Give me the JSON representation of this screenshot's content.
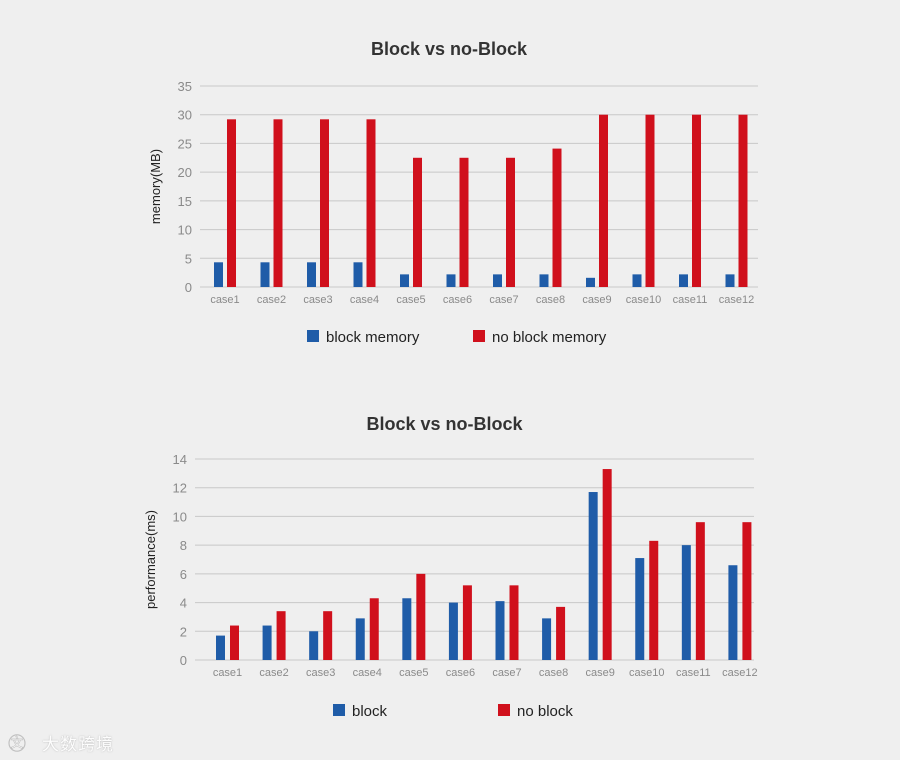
{
  "colors": {
    "background": "#efefef",
    "block": "#1f5ca8",
    "no_block": "#d0101c",
    "grid": "#c8c8c8",
    "axis_text": "#8a8a8a",
    "title_text": "#333333"
  },
  "watermark": {
    "logo_icon": "logo-icon",
    "text": "大数跨境"
  },
  "chart_data": [
    {
      "type": "bar",
      "title": "Block vs no-Block",
      "xlabel": "",
      "ylabel": "memory(MB)",
      "ylim": [
        0,
        35
      ],
      "yticks": [
        0,
        5,
        10,
        15,
        20,
        25,
        30,
        35
      ],
      "grid": true,
      "legend_position": "bottom",
      "categories": [
        "case1",
        "case2",
        "case3",
        "case4",
        "case5",
        "case6",
        "case7",
        "case8",
        "case9",
        "case10",
        "case11",
        "case12"
      ],
      "series": [
        {
          "name": "block memory",
          "color": "#1f5ca8",
          "values": [
            4.3,
            4.3,
            4.3,
            4.3,
            2.2,
            2.2,
            2.2,
            2.2,
            1.6,
            2.2,
            2.2,
            2.2
          ]
        },
        {
          "name": "no block memory",
          "color": "#d0101c",
          "values": [
            29.2,
            29.2,
            29.2,
            29.2,
            22.5,
            22.5,
            22.5,
            24.1,
            30.0,
            30.0,
            30.0,
            30.0
          ]
        }
      ]
    },
    {
      "type": "bar",
      "title": "Block vs no-Block",
      "xlabel": "",
      "ylabel": "performance(ms)",
      "ylim": [
        0,
        14
      ],
      "yticks": [
        0,
        2,
        4,
        6,
        8,
        10,
        12,
        14
      ],
      "grid": true,
      "legend_position": "bottom",
      "categories": [
        "case1",
        "case2",
        "case3",
        "case4",
        "case5",
        "case6",
        "case7",
        "case8",
        "case9",
        "case10",
        "case11",
        "case12"
      ],
      "series": [
        {
          "name": "block",
          "color": "#1f5ca8",
          "values": [
            1.7,
            2.4,
            2.0,
            2.9,
            4.3,
            4.0,
            4.1,
            2.9,
            11.7,
            7.1,
            8.0,
            6.6
          ]
        },
        {
          "name": "no block",
          "color": "#d0101c",
          "values": [
            2.4,
            3.4,
            3.4,
            4.3,
            6.0,
            5.2,
            5.2,
            3.7,
            13.3,
            8.3,
            9.6,
            9.6
          ]
        }
      ]
    }
  ]
}
